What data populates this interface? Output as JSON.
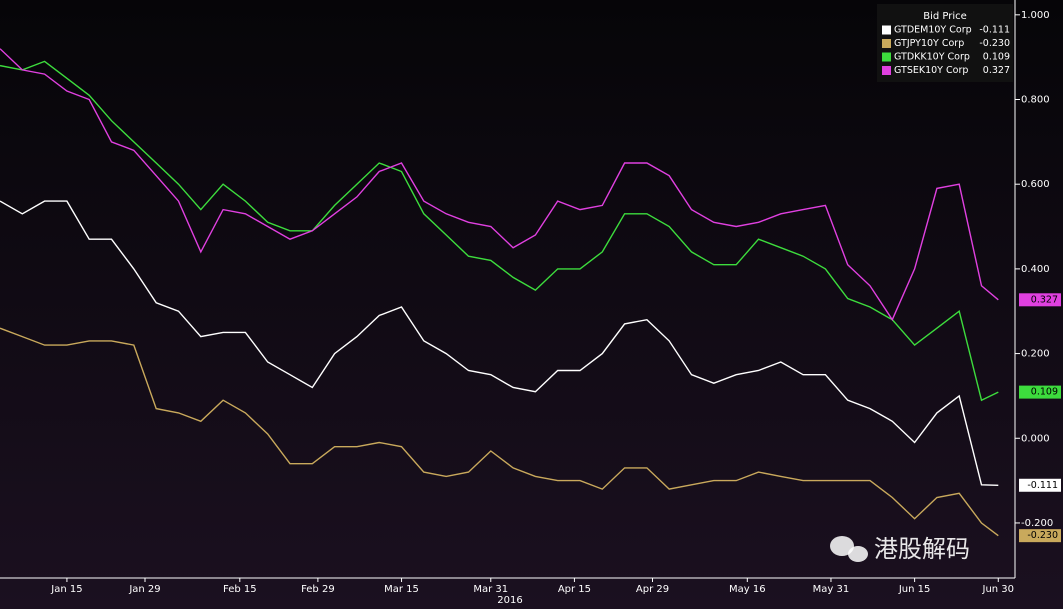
{
  "chart_data": {
    "type": "line",
    "legend_title": "Bid Price",
    "x_label": "2016",
    "watermark": "港股解码",
    "x": [
      "2016-01-03",
      "2016-01-07",
      "2016-01-11",
      "2016-01-15",
      "2016-01-19",
      "2016-01-23",
      "2016-01-27",
      "2016-01-31",
      "2016-02-04",
      "2016-02-08",
      "2016-02-12",
      "2016-02-16",
      "2016-02-20",
      "2016-02-24",
      "2016-02-28",
      "2016-03-03",
      "2016-03-07",
      "2016-03-11",
      "2016-03-15",
      "2016-03-19",
      "2016-03-23",
      "2016-03-27",
      "2016-03-31",
      "2016-04-04",
      "2016-04-08",
      "2016-04-12",
      "2016-04-16",
      "2016-04-20",
      "2016-04-24",
      "2016-04-28",
      "2016-05-02",
      "2016-05-06",
      "2016-05-10",
      "2016-05-14",
      "2016-05-18",
      "2016-05-22",
      "2016-05-26",
      "2016-05-30",
      "2016-06-03",
      "2016-06-07",
      "2016-06-11",
      "2016-06-15",
      "2016-06-19",
      "2016-06-23",
      "2016-06-27",
      "2016-06-30"
    ],
    "series": [
      {
        "name": "GTDEM10Y Corp",
        "color": "#ffffff",
        "last_label": "-0.111",
        "values": [
          0.56,
          0.53,
          0.56,
          0.56,
          0.47,
          0.47,
          0.4,
          0.32,
          0.3,
          0.24,
          0.25,
          0.25,
          0.18,
          0.15,
          0.12,
          0.2,
          0.24,
          0.29,
          0.31,
          0.23,
          0.2,
          0.16,
          0.15,
          0.12,
          0.11,
          0.16,
          0.16,
          0.2,
          0.27,
          0.28,
          0.23,
          0.15,
          0.13,
          0.15,
          0.16,
          0.18,
          0.15,
          0.15,
          0.09,
          0.07,
          0.04,
          -0.01,
          0.06,
          0.1,
          -0.11,
          -0.111
        ]
      },
      {
        "name": "GTJPY10Y Corp",
        "color": "#c9a95c",
        "last_label": "-0.230",
        "values": [
          0.26,
          0.24,
          0.22,
          0.22,
          0.23,
          0.23,
          0.22,
          0.07,
          0.06,
          0.04,
          0.09,
          0.06,
          0.01,
          -0.06,
          -0.06,
          -0.02,
          -0.02,
          -0.01,
          -0.02,
          -0.08,
          -0.09,
          -0.08,
          -0.03,
          -0.07,
          -0.09,
          -0.1,
          -0.1,
          -0.12,
          -0.07,
          -0.07,
          -0.12,
          -0.11,
          -0.1,
          -0.1,
          -0.08,
          -0.09,
          -0.1,
          -0.1,
          -0.1,
          -0.1,
          -0.14,
          -0.19,
          -0.14,
          -0.13,
          -0.2,
          -0.23
        ]
      },
      {
        "name": "GTDKK10Y Corp",
        "color": "#3ddc3d",
        "last_label": "0.109",
        "values": [
          0.88,
          0.87,
          0.89,
          0.85,
          0.81,
          0.75,
          0.7,
          0.65,
          0.6,
          0.54,
          0.6,
          0.56,
          0.51,
          0.49,
          0.49,
          0.55,
          0.6,
          0.65,
          0.63,
          0.53,
          0.48,
          0.43,
          0.42,
          0.38,
          0.35,
          0.4,
          0.4,
          0.44,
          0.53,
          0.53,
          0.5,
          0.44,
          0.41,
          0.41,
          0.47,
          0.45,
          0.43,
          0.4,
          0.33,
          0.31,
          0.28,
          0.22,
          0.26,
          0.3,
          0.09,
          0.109
        ]
      },
      {
        "name": "GTSEK10Y Corp",
        "color": "#e040e0",
        "last_label": "0.327",
        "values": [
          0.92,
          0.87,
          0.86,
          0.82,
          0.8,
          0.7,
          0.68,
          0.62,
          0.56,
          0.44,
          0.54,
          0.53,
          0.5,
          0.47,
          0.49,
          0.53,
          0.57,
          0.63,
          0.65,
          0.56,
          0.53,
          0.51,
          0.5,
          0.45,
          0.48,
          0.56,
          0.54,
          0.55,
          0.65,
          0.65,
          0.62,
          0.54,
          0.51,
          0.5,
          0.51,
          0.53,
          0.54,
          0.55,
          0.41,
          0.36,
          0.28,
          0.4,
          0.59,
          0.6,
          0.36,
          0.327
        ]
      }
    ],
    "xlim": [
      "2016-01-03",
      "2016-07-03"
    ],
    "xticks": [
      {
        "value": "2016-01-15",
        "label": "Jan 15"
      },
      {
        "value": "2016-01-29",
        "label": "Jan 29"
      },
      {
        "value": "2016-02-15",
        "label": "Feb 15"
      },
      {
        "value": "2016-02-29",
        "label": "Feb 29"
      },
      {
        "value": "2016-03-15",
        "label": "Mar 15"
      },
      {
        "value": "2016-03-31",
        "label": "Mar 31"
      },
      {
        "value": "2016-04-15",
        "label": "Apr 15"
      },
      {
        "value": "2016-04-29",
        "label": "Apr 29"
      },
      {
        "value": "2016-05-16",
        "label": "May 16"
      },
      {
        "value": "2016-05-31",
        "label": "May 31"
      },
      {
        "value": "2016-06-15",
        "label": "Jun 15"
      },
      {
        "value": "2016-06-30",
        "label": "Jun 30"
      }
    ],
    "ylim": [
      -0.33,
      1.035
    ],
    "yticks": [
      {
        "value": -0.2,
        "label": "-0.200"
      },
      {
        "value": 0,
        "label": "0.000"
      },
      {
        "value": 0.2,
        "label": "0.200"
      },
      {
        "value": 0.4,
        "label": "0.400"
      },
      {
        "value": 0.6,
        "label": "0.600"
      },
      {
        "value": 0.8,
        "label": "0.800"
      },
      {
        "value": 1,
        "label": "1.000"
      }
    ],
    "grid": false,
    "legend_position": "top-right"
  }
}
